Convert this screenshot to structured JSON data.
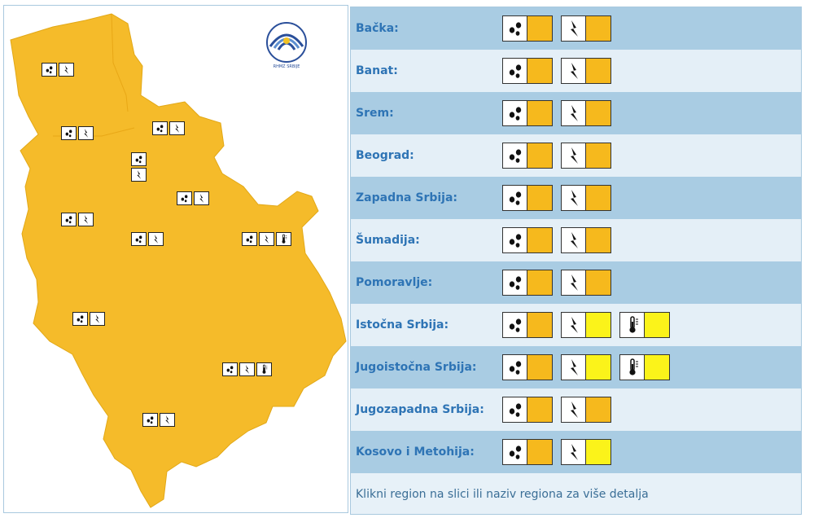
{
  "colors": {
    "map_fill": "#f5bb2a",
    "warn_orange": "#f6b91d",
    "warn_yellow": "#fbf31a",
    "region_link": "#2e74b5",
    "row_dark": "#a9cce3",
    "row_light": "#e4eff7"
  },
  "map": {
    "logo_icon": "rhmz-logo-icon",
    "logo_text": "RHMZ SRBIJE",
    "markers": [
      {
        "icons": [
          "rain-icon",
          "storm-icon"
        ]
      },
      {
        "icons": [
          "rain-icon",
          "storm-icon"
        ]
      },
      {
        "icons": [
          "rain-icon",
          "storm-icon"
        ]
      },
      {
        "icons": [
          "rain-icon",
          "storm-icon"
        ]
      },
      {
        "icons": [
          "rain-icon",
          "storm-icon"
        ]
      },
      {
        "icons": [
          "rain-icon",
          "storm-icon"
        ]
      },
      {
        "icons": [
          "rain-icon",
          "storm-icon"
        ]
      },
      {
        "icons": [
          "rain-icon",
          "storm-icon",
          "heat-icon"
        ]
      },
      {
        "icons": [
          "rain-icon",
          "storm-icon"
        ]
      },
      {
        "icons": [
          "rain-icon",
          "storm-icon",
          "heat-icon"
        ]
      },
      {
        "icons": [
          "rain-icon",
          "storm-icon"
        ]
      }
    ]
  },
  "regions": [
    {
      "name": "Bačka:",
      "warnings": [
        {
          "icon": "rain-icon",
          "level": "orange"
        },
        {
          "icon": "storm-icon",
          "level": "orange"
        }
      ]
    },
    {
      "name": "Banat:",
      "warnings": [
        {
          "icon": "rain-icon",
          "level": "orange"
        },
        {
          "icon": "storm-icon",
          "level": "orange"
        }
      ]
    },
    {
      "name": "Srem:",
      "warnings": [
        {
          "icon": "rain-icon",
          "level": "orange"
        },
        {
          "icon": "storm-icon",
          "level": "orange"
        }
      ]
    },
    {
      "name": "Beograd:",
      "warnings": [
        {
          "icon": "rain-icon",
          "level": "orange"
        },
        {
          "icon": "storm-icon",
          "level": "orange"
        }
      ]
    },
    {
      "name": "Zapadna Srbija:",
      "warnings": [
        {
          "icon": "rain-icon",
          "level": "orange"
        },
        {
          "icon": "storm-icon",
          "level": "orange"
        }
      ]
    },
    {
      "name": "Šumadija:",
      "warnings": [
        {
          "icon": "rain-icon",
          "level": "orange"
        },
        {
          "icon": "storm-icon",
          "level": "orange"
        }
      ]
    },
    {
      "name": "Pomoravlje:",
      "warnings": [
        {
          "icon": "rain-icon",
          "level": "orange"
        },
        {
          "icon": "storm-icon",
          "level": "orange"
        }
      ]
    },
    {
      "name": "Istočna Srbija:",
      "warnings": [
        {
          "icon": "rain-icon",
          "level": "orange"
        },
        {
          "icon": "storm-icon",
          "level": "yellow"
        },
        {
          "icon": "heat-icon",
          "level": "yellow"
        }
      ]
    },
    {
      "name": "Jugoistočna Srbija:",
      "warnings": [
        {
          "icon": "rain-icon",
          "level": "orange"
        },
        {
          "icon": "storm-icon",
          "level": "yellow"
        },
        {
          "icon": "heat-icon",
          "level": "yellow"
        }
      ]
    },
    {
      "name": "Jugozapadna Srbija:",
      "warnings": [
        {
          "icon": "rain-icon",
          "level": "orange"
        },
        {
          "icon": "storm-icon",
          "level": "orange"
        }
      ]
    },
    {
      "name": "Kosovo i Metohija:",
      "warnings": [
        {
          "icon": "rain-icon",
          "level": "orange"
        },
        {
          "icon": "storm-icon",
          "level": "yellow"
        }
      ]
    }
  ],
  "footer": {
    "hint": "Klikni region na slici ili naziv regiona za više detalja"
  }
}
